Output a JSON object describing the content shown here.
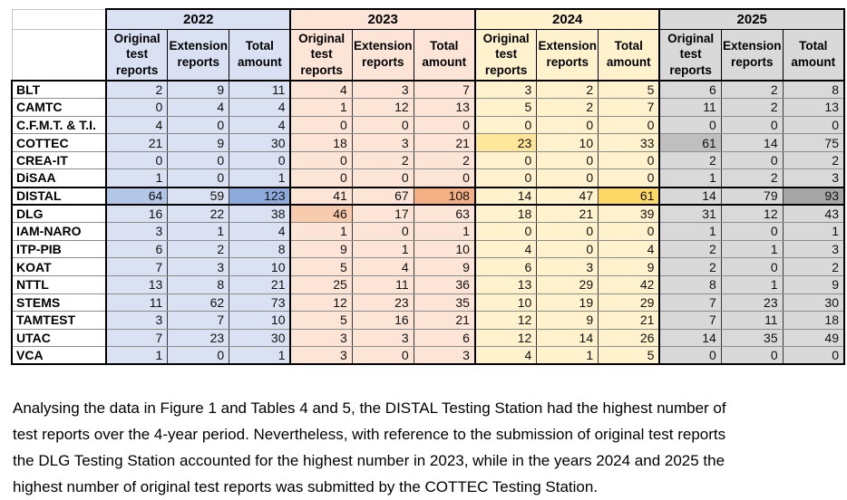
{
  "table": {
    "years": [
      {
        "label": "2022",
        "color": "#D9E1F2"
      },
      {
        "label": "2023",
        "color": "#FCE4D6"
      },
      {
        "label": "2024",
        "color": "#FFF2CC"
      },
      {
        "label": "2025",
        "color": "#D9D9D9"
      }
    ],
    "sub_headers": [
      "Original test reports",
      "Extension reports",
      "Total amount"
    ],
    "rows": [
      {
        "station": "BLT",
        "values": [
          2,
          9,
          11,
          4,
          3,
          7,
          3,
          2,
          5,
          6,
          2,
          8
        ]
      },
      {
        "station": "CAMTC",
        "values": [
          0,
          4,
          4,
          1,
          12,
          13,
          5,
          2,
          7,
          11,
          2,
          13
        ]
      },
      {
        "station": "C.F.M.T. & T.I.",
        "values": [
          4,
          0,
          4,
          0,
          0,
          0,
          0,
          0,
          0,
          0,
          0,
          0
        ]
      },
      {
        "station": "COTTEC",
        "values": [
          21,
          9,
          30,
          18,
          3,
          21,
          23,
          10,
          33,
          61,
          14,
          75
        ]
      },
      {
        "station": "CREA-IT",
        "values": [
          0,
          0,
          0,
          0,
          2,
          2,
          0,
          0,
          0,
          2,
          0,
          2
        ]
      },
      {
        "station": "DiSAA",
        "values": [
          1,
          0,
          1,
          0,
          0,
          0,
          0,
          0,
          0,
          1,
          2,
          3
        ]
      },
      {
        "station": "DISTAL",
        "values": [
          64,
          59,
          123,
          41,
          67,
          108,
          14,
          47,
          61,
          14,
          79,
          93
        ]
      },
      {
        "station": "DLG",
        "values": [
          16,
          22,
          38,
          46,
          17,
          63,
          18,
          21,
          39,
          31,
          12,
          43
        ]
      },
      {
        "station": "IAM-NARO",
        "values": [
          3,
          1,
          4,
          1,
          0,
          1,
          0,
          0,
          0,
          1,
          0,
          1
        ]
      },
      {
        "station": "ITP-PIB",
        "values": [
          6,
          2,
          8,
          9,
          1,
          10,
          4,
          0,
          4,
          2,
          1,
          3
        ]
      },
      {
        "station": "KOAT",
        "values": [
          7,
          3,
          10,
          5,
          4,
          9,
          6,
          3,
          9,
          2,
          0,
          2
        ]
      },
      {
        "station": "NTTL",
        "values": [
          13,
          8,
          21,
          25,
          11,
          36,
          13,
          29,
          42,
          8,
          1,
          9
        ]
      },
      {
        "station": "STEMS",
        "values": [
          11,
          62,
          73,
          12,
          23,
          35,
          10,
          19,
          29,
          7,
          23,
          30
        ]
      },
      {
        "station": "TAMTEST",
        "values": [
          3,
          7,
          10,
          5,
          16,
          21,
          12,
          9,
          21,
          7,
          11,
          18
        ]
      },
      {
        "station": "UTAC",
        "values": [
          7,
          23,
          30,
          3,
          3,
          6,
          12,
          14,
          26,
          14,
          35,
          49
        ]
      },
      {
        "station": "VCA",
        "values": [
          1,
          0,
          1,
          3,
          0,
          3,
          4,
          1,
          5,
          0,
          0,
          0
        ]
      }
    ],
    "highlights": {
      "DISTAL.0": "#B4C6E7",
      "DISTAL.2": "#8EA9DB",
      "DLG.3": "#F8CBAD",
      "DISTAL.5": "#F4B084",
      "COTTEC.6": "#FFE699",
      "DISTAL.8": "#FFD966",
      "COTTEC.9": "#BFBFBF",
      "DISTAL.11": "#A6A6A6"
    },
    "emphasized_row": "DISTAL"
  },
  "caption_lines": [
    "Analysing the data in Figure 1 and Tables 4 and 5, the DISTAL Testing Station had the highest number of",
    "test reports over the 4-year period. Nevertheless, with reference to the submission of original test reports",
    "the DLG Testing Station accounted for the highest number in 2023, while in the years 2024 and 2025 the",
    "highest number of original test reports was submitted by the COTTEC Testing Station."
  ]
}
